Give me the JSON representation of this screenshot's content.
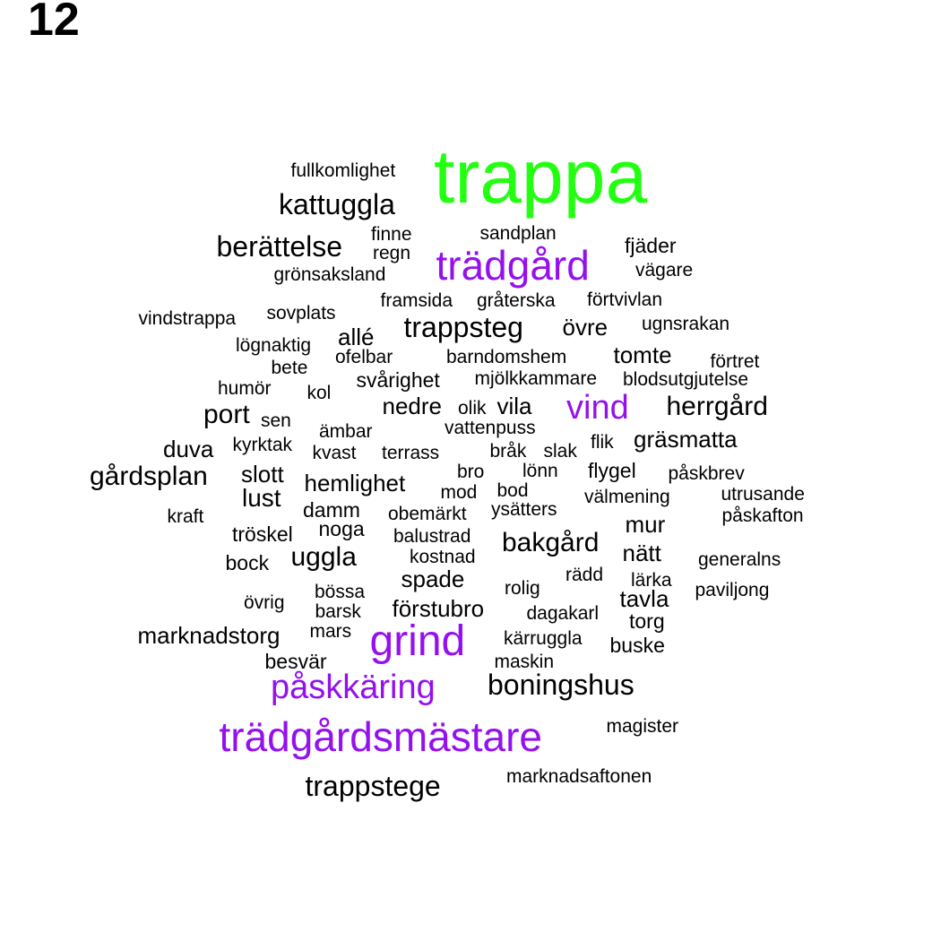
{
  "panel_label": "12",
  "colors": {
    "green": "#22ff11",
    "purple": "#9411ee",
    "black": "#000000"
  },
  "words": [
    {
      "text": "trappa",
      "color": "green"
    },
    {
      "text": "trädgård",
      "color": "purple"
    },
    {
      "text": "grind",
      "color": "purple"
    },
    {
      "text": "trädgårdsmästare",
      "color": "purple"
    },
    {
      "text": "påskkäring",
      "color": "purple"
    },
    {
      "text": "vind",
      "color": "purple"
    },
    {
      "text": "fullkomlighet",
      "color": "black"
    },
    {
      "text": "kattuggla",
      "color": "black"
    },
    {
      "text": "finne",
      "color": "black"
    },
    {
      "text": "sandplan",
      "color": "black"
    },
    {
      "text": "fjäder",
      "color": "black"
    },
    {
      "text": "berättelse",
      "color": "black"
    },
    {
      "text": "regn",
      "color": "black"
    },
    {
      "text": "vägare",
      "color": "black"
    },
    {
      "text": "grönsaksland",
      "color": "black"
    },
    {
      "text": "framsida",
      "color": "black"
    },
    {
      "text": "gråterska",
      "color": "black"
    },
    {
      "text": "förtvivlan",
      "color": "black"
    },
    {
      "text": "vindstrappa",
      "color": "black"
    },
    {
      "text": "sovplats",
      "color": "black"
    },
    {
      "text": "trappsteg",
      "color": "black"
    },
    {
      "text": "övre",
      "color": "black"
    },
    {
      "text": "ugnsrakan",
      "color": "black"
    },
    {
      "text": "lögnaktig",
      "color": "black"
    },
    {
      "text": "allé",
      "color": "black"
    },
    {
      "text": "ofelbar",
      "color": "black"
    },
    {
      "text": "barndomshem",
      "color": "black"
    },
    {
      "text": "tomte",
      "color": "black"
    },
    {
      "text": "förtret",
      "color": "black"
    },
    {
      "text": "bete",
      "color": "black"
    },
    {
      "text": "svårighet",
      "color": "black"
    },
    {
      "text": "mjölkkammare",
      "color": "black"
    },
    {
      "text": "blodsutgjutelse",
      "color": "black"
    },
    {
      "text": "humör",
      "color": "black"
    },
    {
      "text": "kol",
      "color": "black"
    },
    {
      "text": "nedre",
      "color": "black"
    },
    {
      "text": "olik",
      "color": "black"
    },
    {
      "text": "vila",
      "color": "black"
    },
    {
      "text": "herrgård",
      "color": "black"
    },
    {
      "text": "port",
      "color": "black"
    },
    {
      "text": "sen",
      "color": "black"
    },
    {
      "text": "ämbar",
      "color": "black"
    },
    {
      "text": "vattenpuss",
      "color": "black"
    },
    {
      "text": "duva",
      "color": "black"
    },
    {
      "text": "kyrktak",
      "color": "black"
    },
    {
      "text": "kvast",
      "color": "black"
    },
    {
      "text": "terrass",
      "color": "black"
    },
    {
      "text": "bråk",
      "color": "black"
    },
    {
      "text": "slak",
      "color": "black"
    },
    {
      "text": "flik",
      "color": "black"
    },
    {
      "text": "gräsmatta",
      "color": "black"
    },
    {
      "text": "gårdsplan",
      "color": "black"
    },
    {
      "text": "slott",
      "color": "black"
    },
    {
      "text": "hemlighet",
      "color": "black"
    },
    {
      "text": "bro",
      "color": "black"
    },
    {
      "text": "lönn",
      "color": "black"
    },
    {
      "text": "flygel",
      "color": "black"
    },
    {
      "text": "påskbrev",
      "color": "black"
    },
    {
      "text": "lust",
      "color": "black"
    },
    {
      "text": "mod",
      "color": "black"
    },
    {
      "text": "bod",
      "color": "black"
    },
    {
      "text": "välmening",
      "color": "black"
    },
    {
      "text": "utrusande",
      "color": "black"
    },
    {
      "text": "kraft",
      "color": "black"
    },
    {
      "text": "damm",
      "color": "black"
    },
    {
      "text": "obemärkt",
      "color": "black"
    },
    {
      "text": "ysätters",
      "color": "black"
    },
    {
      "text": "påskafton",
      "color": "black"
    },
    {
      "text": "tröskel",
      "color": "black"
    },
    {
      "text": "noga",
      "color": "black"
    },
    {
      "text": "balustrad",
      "color": "black"
    },
    {
      "text": "mur",
      "color": "black"
    },
    {
      "text": "bakgård",
      "color": "black"
    },
    {
      "text": "bock",
      "color": "black"
    },
    {
      "text": "uggla",
      "color": "black"
    },
    {
      "text": "kostnad",
      "color": "black"
    },
    {
      "text": "nätt",
      "color": "black"
    },
    {
      "text": "generalns",
      "color": "black"
    },
    {
      "text": "spade",
      "color": "black"
    },
    {
      "text": "rädd",
      "color": "black"
    },
    {
      "text": "lärka",
      "color": "black"
    },
    {
      "text": "rolig",
      "color": "black"
    },
    {
      "text": "paviljong",
      "color": "black"
    },
    {
      "text": "övrig",
      "color": "black"
    },
    {
      "text": "bössa",
      "color": "black"
    },
    {
      "text": "tavla",
      "color": "black"
    },
    {
      "text": "förstubro",
      "color": "black"
    },
    {
      "text": "barsk",
      "color": "black"
    },
    {
      "text": "dagakarl",
      "color": "black"
    },
    {
      "text": "torg",
      "color": "black"
    },
    {
      "text": "marknadstorg",
      "color": "black"
    },
    {
      "text": "mars",
      "color": "black"
    },
    {
      "text": "kärruggla",
      "color": "black"
    },
    {
      "text": "buske",
      "color": "black"
    },
    {
      "text": "besvär",
      "color": "black"
    },
    {
      "text": "maskin",
      "color": "black"
    },
    {
      "text": "boningshus",
      "color": "black"
    },
    {
      "text": "magister",
      "color": "black"
    },
    {
      "text": "trappstege",
      "color": "black"
    },
    {
      "text": "marknadsaftonen",
      "color": "black"
    }
  ]
}
